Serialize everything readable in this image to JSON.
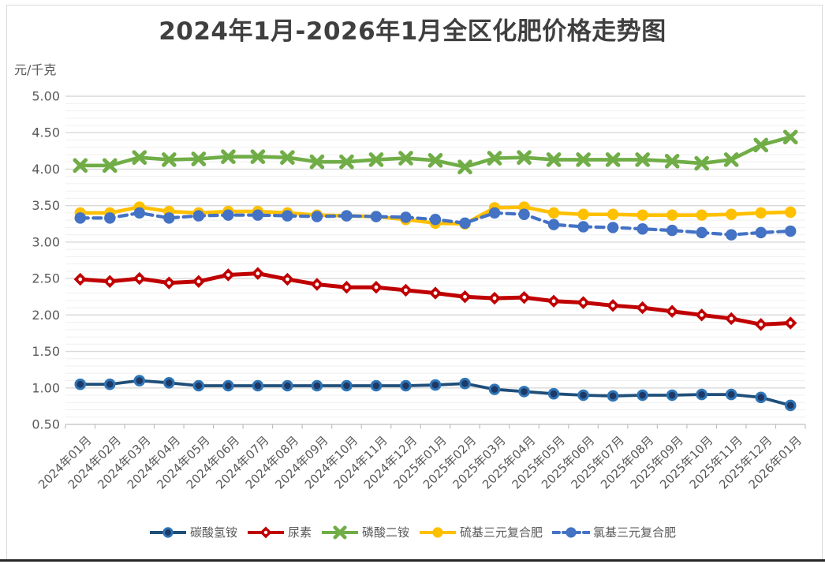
{
  "chart_data": {
    "type": "line",
    "title": "2024年1月-2026年1月全区化肥价格走势图",
    "ylabel": "元/千克",
    "xlabel": "",
    "ylim": [
      0.5,
      5.0
    ],
    "y_major_step": 0.5,
    "y_minor_step": 0.1,
    "y_tick_labels": [
      "5.00",
      "4.50",
      "4.00",
      "3.50",
      "3.00",
      "2.50",
      "2.00",
      "1.50",
      "1.00",
      "0.50"
    ],
    "grid": "horizontal major+minor",
    "legend_position": "bottom",
    "categories": [
      "2024年01月",
      "2024年02月",
      "2024年03月",
      "2024年04月",
      "2024年05月",
      "2024年06月",
      "2024年07月",
      "2024年08月",
      "2024年09月",
      "2024年10月",
      "2024年11月",
      "2024年12月",
      "2025年01月",
      "2025年02月",
      "2025年03月",
      "2025年04月",
      "2025年05月",
      "2025年06月",
      "2025年07月",
      "2025年08月",
      "2025年09月",
      "2025年10月",
      "2025年11月",
      "2025年12月",
      "2026年01月"
    ],
    "series": [
      {
        "name": "碳酸氢铵",
        "color": "#1F4E79",
        "marker": "circle-ring",
        "marker_fill": "#1F3864",
        "marker_ring": "#2E75B6",
        "line_style": "solid",
        "values": [
          1.05,
          1.05,
          1.1,
          1.07,
          1.03,
          1.03,
          1.03,
          1.03,
          1.03,
          1.03,
          1.03,
          1.03,
          1.04,
          1.06,
          0.98,
          0.95,
          0.92,
          0.9,
          0.89,
          0.9,
          0.9,
          0.91,
          0.91,
          0.87,
          0.76
        ]
      },
      {
        "name": "尿素",
        "color": "#C00000",
        "marker": "diamond",
        "line_style": "solid",
        "values": [
          2.49,
          2.46,
          2.5,
          2.44,
          2.46,
          2.55,
          2.57,
          2.49,
          2.42,
          2.38,
          2.38,
          2.34,
          2.3,
          2.25,
          2.23,
          2.24,
          2.19,
          2.17,
          2.13,
          2.1,
          2.05,
          2.0,
          1.95,
          1.87,
          1.89
        ]
      },
      {
        "name": "磷酸二铵",
        "color": "#70AD47",
        "marker": "x",
        "line_style": "solid",
        "values": [
          4.05,
          4.05,
          4.16,
          4.13,
          4.14,
          4.17,
          4.17,
          4.16,
          4.1,
          4.1,
          4.13,
          4.15,
          4.12,
          4.03,
          4.15,
          4.16,
          4.13,
          4.13,
          4.13,
          4.13,
          4.11,
          4.08,
          4.13,
          4.33,
          4.44
        ]
      },
      {
        "name": "硫基三元复合肥",
        "color": "#FFC000",
        "marker": "circle",
        "line_style": "solid",
        "values": [
          3.4,
          3.4,
          3.48,
          3.42,
          3.4,
          3.42,
          3.42,
          3.4,
          3.37,
          3.36,
          3.35,
          3.31,
          3.26,
          3.25,
          3.47,
          3.48,
          3.4,
          3.38,
          3.38,
          3.37,
          3.37,
          3.37,
          3.38,
          3.4,
          3.41
        ]
      },
      {
        "name": "氯基三元复合肥",
        "color": "#4472C4",
        "marker": "circle",
        "line_style": "dashed",
        "values": [
          3.33,
          3.33,
          3.4,
          3.33,
          3.36,
          3.37,
          3.37,
          3.36,
          3.35,
          3.36,
          3.35,
          3.34,
          3.31,
          3.26,
          3.4,
          3.38,
          3.24,
          3.21,
          3.2,
          3.18,
          3.16,
          3.13,
          3.1,
          3.13,
          3.15
        ]
      }
    ],
    "axis_colors": {
      "axis_line": "#BFBFBF",
      "major_grid": "#D9D9D9",
      "minor_grid": "#EFEFEF",
      "tick_text": "#595959",
      "title_text": "#3F3F3F"
    }
  }
}
